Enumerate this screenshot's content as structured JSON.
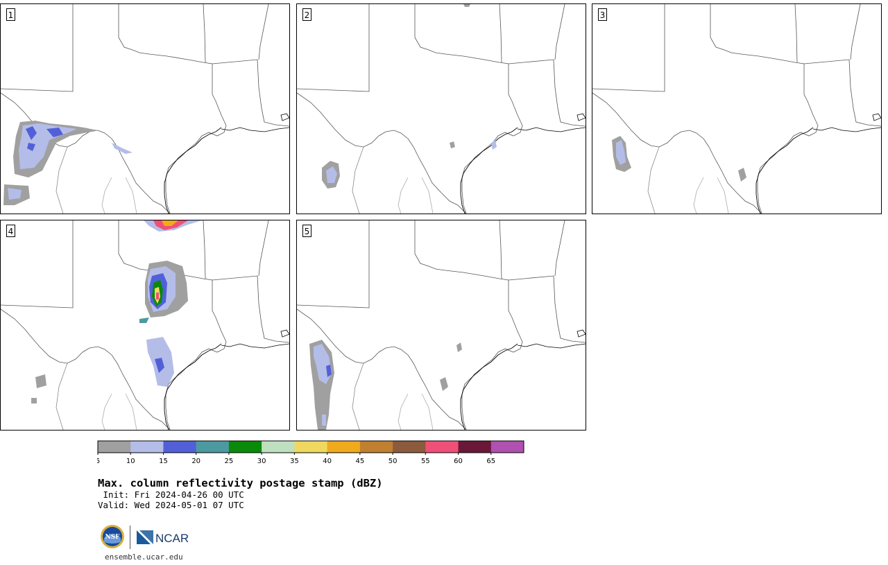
{
  "panels": [
    {
      "label": "1"
    },
    {
      "label": "2"
    },
    {
      "label": "3"
    },
    {
      "label": "4"
    },
    {
      "label": "5"
    }
  ],
  "colorbar": {
    "ticks": [
      "5",
      "10",
      "15",
      "20",
      "25",
      "30",
      "35",
      "40",
      "45",
      "50",
      "55",
      "60",
      "65"
    ],
    "colors": [
      "#a0a0a0",
      "#b4bde8",
      "#5260d8",
      "#4c9aa0",
      "#0a8a0a",
      "#bfe0c0",
      "#f0d860",
      "#f0aa1c",
      "#c08030",
      "#8c5a3c",
      "#f05078",
      "#6a1838",
      "#b050b0"
    ]
  },
  "title": "Max. column reflectivity postage stamp (dBZ)",
  "init": " Init: Fri 2024-04-26 00 UTC",
  "valid": "Valid: Wed 2024-05-01 07 UTC",
  "logos": {
    "nsf": "NSF",
    "ncar": "NCAR"
  },
  "site": "ensemble.ucar.edu"
}
